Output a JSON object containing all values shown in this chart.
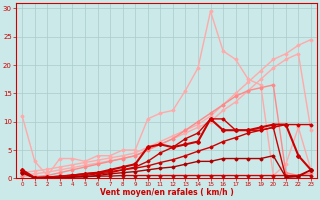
{
  "bg_color": "#cbe9e8",
  "grid_color": "#aacccc",
  "xlabel": "Vent moyen/en rafales ( km/h )",
  "xlabel_color": "#cc0000",
  "tick_color": "#cc0000",
  "xlim": [
    -0.5,
    23.5
  ],
  "ylim": [
    0,
    31
  ],
  "yticks": [
    0,
    5,
    10,
    15,
    20,
    25,
    30
  ],
  "xticks": [
    0,
    1,
    2,
    3,
    4,
    5,
    6,
    7,
    8,
    9,
    10,
    11,
    12,
    13,
    14,
    15,
    16,
    17,
    18,
    19,
    20,
    21,
    22,
    23
  ],
  "series": [
    {
      "x": [
        0,
        1,
        2,
        3,
        4,
        5,
        6,
        7,
        8,
        9,
        10,
        11,
        12,
        13,
        14,
        15,
        16,
        17,
        18,
        19,
        20,
        21,
        22,
        23
      ],
      "y": [
        1.0,
        1.3,
        1.6,
        2.0,
        2.4,
        2.8,
        3.2,
        3.6,
        4.0,
        4.5,
        5.5,
        6.5,
        7.5,
        8.5,
        9.5,
        11.0,
        13.0,
        15.0,
        17.0,
        19.0,
        21.0,
        22.0,
        23.5,
        24.5
      ],
      "color": "#ffaaaa",
      "lw": 1.0,
      "marker": "D",
      "ms": 1.5
    },
    {
      "x": [
        0,
        1,
        2,
        3,
        4,
        5,
        6,
        7,
        8,
        9,
        10,
        11,
        12,
        13,
        14,
        15,
        16,
        17,
        18,
        19,
        20,
        21,
        22,
        23
      ],
      "y": [
        0.5,
        0.8,
        1.1,
        1.5,
        1.9,
        2.3,
        2.7,
        3.1,
        3.5,
        4.0,
        5.0,
        6.0,
        7.0,
        8.0,
        9.0,
        10.0,
        12.0,
        13.5,
        15.5,
        17.5,
        19.5,
        21.0,
        22.0,
        8.5
      ],
      "color": "#ffaaaa",
      "lw": 1.0,
      "marker": "D",
      "ms": 1.5
    },
    {
      "x": [
        0,
        1,
        2,
        3,
        4,
        5,
        6,
        7,
        8,
        9,
        10,
        11,
        12,
        13,
        14,
        15,
        16,
        17,
        18,
        19,
        20,
        21,
        22,
        23
      ],
      "y": [
        11.0,
        3.0,
        0.5,
        3.5,
        3.5,
        3.0,
        4.0,
        4.0,
        5.0,
        5.0,
        10.5,
        11.5,
        12.0,
        15.5,
        19.5,
        29.5,
        22.5,
        21.0,
        17.5,
        16.5,
        0.5,
        2.5,
        9.0,
        1.5
      ],
      "color": "#ffaaaa",
      "lw": 1.0,
      "marker": "D",
      "ms": 1.5
    },
    {
      "x": [
        0,
        1,
        2,
        3,
        4,
        5,
        6,
        7,
        8,
        9,
        10,
        11,
        12,
        13,
        14,
        15,
        16,
        17,
        18,
        19,
        20,
        21,
        22,
        23
      ],
      "y": [
        0.5,
        0.3,
        0.5,
        1.0,
        1.5,
        2.0,
        2.5,
        3.0,
        3.5,
        4.0,
        5.0,
        6.0,
        7.0,
        8.5,
        10.0,
        11.5,
        13.0,
        14.5,
        15.5,
        16.0,
        16.5,
        1.0,
        0.5,
        1.0
      ],
      "color": "#ff8888",
      "lw": 1.0,
      "marker": "D",
      "ms": 1.5
    },
    {
      "x": [
        0,
        1,
        2,
        3,
        4,
        5,
        6,
        7,
        8,
        9,
        10,
        11,
        12,
        13,
        14,
        15,
        16,
        17,
        18,
        19,
        20,
        21,
        22,
        23
      ],
      "y": [
        1.2,
        0.1,
        0.1,
        0.2,
        0.3,
        0.3,
        0.4,
        0.4,
        0.5,
        0.5,
        0.5,
        0.5,
        0.5,
        0.5,
        0.5,
        0.5,
        0.5,
        0.5,
        0.5,
        0.5,
        0.5,
        0.5,
        0.5,
        0.5
      ],
      "color": "#cc0000",
      "lw": 1.0,
      "marker": "D",
      "ms": 1.5
    },
    {
      "x": [
        0,
        1,
        2,
        3,
        4,
        5,
        6,
        7,
        8,
        9,
        10,
        11,
        12,
        13,
        14,
        15,
        16,
        17,
        18,
        19,
        20,
        21,
        22,
        23
      ],
      "y": [
        1.0,
        0.1,
        0.1,
        0.2,
        0.3,
        0.5,
        0.8,
        1.0,
        1.5,
        2.0,
        3.0,
        4.5,
        5.5,
        7.0,
        8.0,
        10.5,
        10.5,
        8.5,
        8.5,
        8.5,
        9.0,
        0.2,
        0.5,
        1.5
      ],
      "color": "#cc0000",
      "lw": 1.0,
      "marker": "D",
      "ms": 1.5
    },
    {
      "x": [
        0,
        1,
        2,
        3,
        4,
        5,
        6,
        7,
        8,
        9,
        10,
        11,
        12,
        13,
        14,
        15,
        16,
        17,
        18,
        19,
        20,
        21,
        22,
        23
      ],
      "y": [
        1.2,
        0.1,
        0.2,
        0.4,
        0.6,
        0.8,
        1.0,
        1.2,
        1.5,
        1.8,
        2.2,
        2.8,
        3.3,
        4.0,
        4.8,
        5.5,
        6.5,
        7.2,
        8.0,
        8.5,
        9.0,
        9.5,
        9.5,
        9.5
      ],
      "color": "#cc0000",
      "lw": 1.0,
      "marker": "D",
      "ms": 1.5
    },
    {
      "x": [
        0,
        1,
        2,
        3,
        4,
        5,
        6,
        7,
        8,
        9,
        10,
        11,
        12,
        13,
        14,
        15,
        16,
        17,
        18,
        19,
        20,
        21,
        22,
        23
      ],
      "y": [
        1.5,
        0.1,
        0.2,
        0.3,
        0.5,
        0.8,
        1.0,
        1.5,
        2.0,
        2.5,
        5.5,
        6.0,
        5.5,
        6.0,
        6.5,
        10.5,
        8.5,
        8.5,
        8.5,
        9.0,
        9.5,
        9.5,
        4.0,
        1.5
      ],
      "color": "#cc0000",
      "lw": 1.5,
      "marker": "D",
      "ms": 2
    },
    {
      "x": [
        0,
        1,
        2,
        3,
        4,
        5,
        6,
        7,
        8,
        9,
        10,
        11,
        12,
        13,
        14,
        15,
        16,
        17,
        18,
        19,
        20,
        21,
        22,
        23
      ],
      "y": [
        1.0,
        0.0,
        0.1,
        0.1,
        0.2,
        0.3,
        0.5,
        0.8,
        1.0,
        1.2,
        1.5,
        1.8,
        2.0,
        2.5,
        3.0,
        3.0,
        3.5,
        3.5,
        3.5,
        3.5,
        4.0,
        0.2,
        0.3,
        1.5
      ],
      "color": "#aa0000",
      "lw": 1.0,
      "marker": "D",
      "ms": 1.5
    }
  ]
}
